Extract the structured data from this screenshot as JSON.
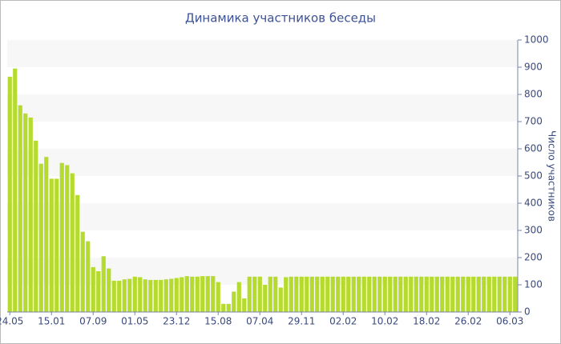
{
  "chart_data": {
    "type": "bar",
    "title": "Динамика участников беседы",
    "y_axis_label": "Число участников",
    "categories": [
      "24.05",
      null,
      null,
      null,
      null,
      null,
      null,
      null,
      "15.01",
      null,
      null,
      null,
      null,
      null,
      null,
      null,
      "07.09",
      null,
      null,
      null,
      null,
      null,
      null,
      null,
      "01.05",
      null,
      null,
      null,
      null,
      null,
      null,
      null,
      "23.12",
      null,
      null,
      null,
      null,
      null,
      null,
      null,
      "15.08",
      null,
      null,
      null,
      null,
      null,
      null,
      null,
      "07.04",
      null,
      null,
      null,
      null,
      null,
      null,
      null,
      "29.11",
      null,
      null,
      null,
      null,
      null,
      null,
      null,
      "02.02",
      null,
      null,
      null,
      null,
      null,
      null,
      null,
      "10.02",
      null,
      null,
      null,
      null,
      null,
      null,
      null,
      "18.02",
      null,
      null,
      null,
      null,
      null,
      null,
      null,
      "26.02",
      null,
      null,
      null,
      null,
      null,
      null,
      null,
      "06.03",
      null
    ],
    "values": [
      865,
      895,
      760,
      730,
      715,
      630,
      545,
      570,
      490,
      490,
      548,
      540,
      510,
      430,
      295,
      260,
      165,
      150,
      205,
      160,
      115,
      115,
      120,
      122,
      130,
      128,
      120,
      118,
      118,
      118,
      120,
      122,
      125,
      128,
      132,
      130,
      130,
      132,
      132,
      132,
      110,
      30,
      30,
      75,
      110,
      50,
      130,
      130,
      130,
      100,
      130,
      130,
      90,
      128,
      130,
      130,
      130,
      130,
      130,
      130,
      130,
      130,
      130,
      130,
      130,
      130,
      130,
      130,
      130,
      130,
      130,
      130,
      130,
      130,
      130,
      130,
      130,
      130,
      130,
      130,
      130,
      130,
      130,
      130,
      130,
      130,
      130,
      130,
      130,
      130,
      130,
      130,
      130,
      130,
      130,
      130,
      130,
      130
    ],
    "color": "#b5db2e",
    "ylim": [
      0,
      1000
    ],
    "yticks": [
      0,
      100,
      200,
      300,
      400,
      500,
      600,
      700,
      800,
      900,
      1000
    ],
    "grid": true,
    "y_axis_side": "right"
  }
}
